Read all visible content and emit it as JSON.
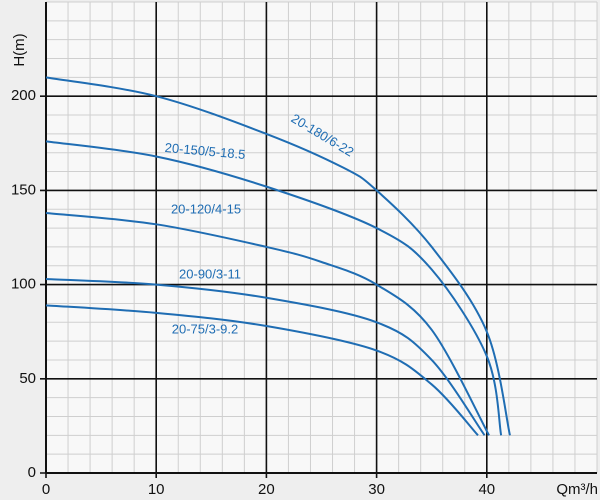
{
  "chart_data": {
    "type": "line",
    "xlabel": "Qm³/h",
    "ylabel": "H(m)",
    "xlim": [
      0,
      50
    ],
    "ylim": [
      0,
      250
    ],
    "xticks": [
      0,
      10,
      20,
      30,
      40
    ],
    "yticks": [
      0,
      50,
      100,
      150,
      200
    ],
    "grid": true,
    "series": [
      {
        "name": "20-180/6-22",
        "color": "#1f6db3",
        "x": [
          0,
          10,
          20,
          27,
          30,
          35,
          40,
          42.1
        ],
        "values": [
          210,
          200,
          180,
          162,
          150,
          120,
          75,
          20
        ]
      },
      {
        "name": "20-150/5-18.5",
        "color": "#1f6db3",
        "x": [
          0,
          10,
          20,
          30,
          35,
          40,
          41.3
        ],
        "values": [
          176,
          168,
          152,
          130,
          108,
          62,
          20
        ]
      },
      {
        "name": "20-120/4-15",
        "color": "#1f6db3",
        "x": [
          0,
          10,
          20,
          25,
          30,
          35,
          40.2
        ],
        "values": [
          138,
          132,
          120,
          112,
          100,
          76,
          20
        ]
      },
      {
        "name": "20-90/3-11",
        "color": "#1f6db3",
        "x": [
          0,
          10,
          20,
          30,
          35,
          39.8
        ],
        "values": [
          103,
          100,
          93,
          80,
          60,
          20
        ]
      },
      {
        "name": "20-75/3-9.2",
        "color": "#1f6db3",
        "x": [
          0,
          10,
          20,
          30,
          35,
          39.2
        ],
        "values": [
          89,
          85,
          78,
          65,
          47,
          20
        ]
      }
    ]
  }
}
